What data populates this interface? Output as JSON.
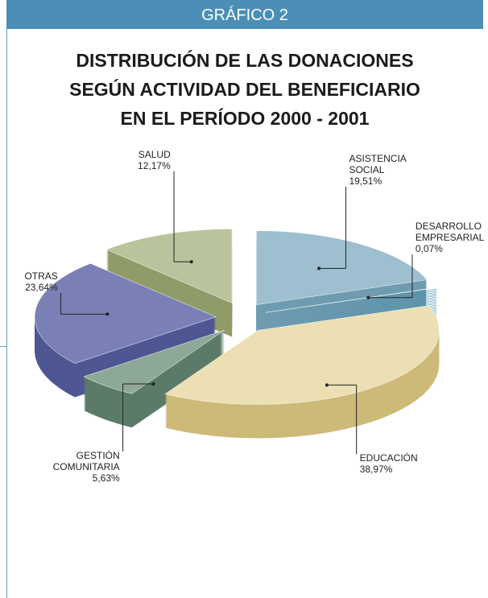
{
  "chart_data": {
    "type": "pie",
    "header": "GRÁFICO 2",
    "title": [
      "DISTRIBUCIÓN DE LAS DONACIONES",
      "SEGÚN ACTIVIDAD DEL BENEFICIARIO",
      "EN EL PERÍODO 2000 - 2001"
    ],
    "categories": [
      "ASISTENCIA SOCIAL",
      "DESARROLLO EMPRESARIAL",
      "EDUCACIÓN",
      "GESTIÓN COMUNITARIA",
      "OTRAS",
      "SALUD"
    ],
    "values": [
      19.51,
      0.07,
      38.97,
      5.63,
      23.64,
      12.17
    ],
    "value_labels": [
      "19,51%",
      "0,07%",
      "38,97%",
      "5,63%",
      "23,64%",
      "12,17%"
    ],
    "colors": [
      "#9dbfd0",
      "#2f9cc6",
      "#ebdfb3",
      "#8ea897",
      "#7a80b6",
      "#b9c49c"
    ],
    "side_colors": [
      "#6f9bb0",
      "#1f7aa0",
      "#cdb978",
      "#5b7b68",
      "#4e5792",
      "#8f9b69"
    ]
  }
}
